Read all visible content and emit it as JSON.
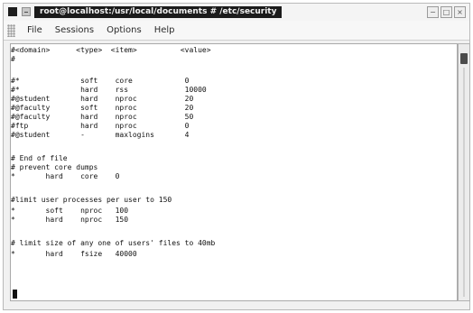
{
  "window": {
    "title": "root@localhost:/usr/local/documents # /etc/security",
    "menu": [
      "File",
      "Sessions",
      "Options",
      "Help"
    ],
    "buttons": {
      "minimize": "−",
      "maximize": "□",
      "close": "×"
    }
  },
  "terminal": {
    "lines": [
      "#<domain>      <type>  <item>          <value>",
      "#",
      "",
      "#*              soft    core            0",
      "#*              hard    rss             10000",
      "#@student       hard    nproc           20",
      "#@faculty       soft    nproc           20",
      "#@faculty       hard    nproc           50",
      "#ftp            hard    nproc           0",
      "#@student       -       maxlogins       4",
      "",
      "# End of file",
      "# prevent core dumps",
      "*       hard    core    0",
      "",
      "#limit user processes per user to 150",
      "*       soft    nproc   100",
      "*       hard    nproc   150",
      "",
      "# limit size of any one of users' files to 40mb",
      "*       hard    fsize   40000"
    ]
  }
}
